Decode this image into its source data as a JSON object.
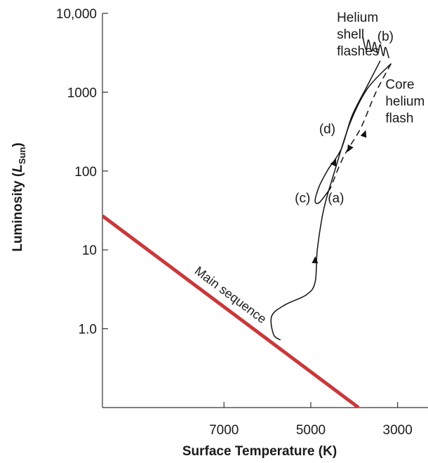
{
  "chart_data": {
    "type": "line",
    "title": "",
    "xlabel": "Surface Temperature (K)",
    "ylabel_main": "Luminosity (",
    "ylabel_symbol": "L",
    "ylabel_sub": "Sun",
    "ylabel_close": ")",
    "x_axis_reversed": true,
    "y_scale": "log",
    "xlim": [
      9800,
      2300
    ],
    "ylim": [
      0.1,
      10000
    ],
    "x_ticks": [
      {
        "value": 7000,
        "label": "7000"
      },
      {
        "value": 5000,
        "label": "5000"
      },
      {
        "value": 3000,
        "label": "3000"
      }
    ],
    "y_ticks": [
      {
        "value": 10000,
        "label": "10,000"
      },
      {
        "value": 1000,
        "label": "1000"
      },
      {
        "value": 100,
        "label": "100"
      },
      {
        "value": 10,
        "label": "10"
      },
      {
        "value": 1,
        "label": "1.0"
      }
    ],
    "main_sequence": {
      "label": "Main sequence",
      "color": "#c8393b",
      "points": [
        [
          9800,
          27
        ],
        [
          3900,
          0.1
        ]
      ]
    },
    "tracks": [
      {
        "id": "evolution-track-a-to-b",
        "style": "solid",
        "points": [
          [
            5700,
            0.72
          ],
          [
            5860,
            0.85
          ],
          [
            5900,
            1.45
          ],
          [
            5600,
            2.0
          ],
          [
            5100,
            2.7
          ],
          [
            4900,
            3.9
          ],
          [
            4850,
            10
          ],
          [
            4700,
            33
          ],
          [
            4450,
            100
          ],
          [
            4100,
            400
          ],
          [
            3700,
            1100
          ],
          [
            3150,
            2300
          ]
        ]
      },
      {
        "id": "evolution-track-b-to-c",
        "style": "dashed",
        "points": [
          [
            3150,
            2300
          ],
          [
            3500,
            1000
          ],
          [
            3850,
            350
          ],
          [
            4250,
            150
          ],
          [
            4550,
            60
          ]
        ]
      },
      {
        "id": "evolution-track-c-to-d",
        "style": "solid",
        "points": [
          [
            4550,
            60
          ],
          [
            4800,
            40
          ],
          [
            4900,
            42
          ],
          [
            4800,
            65
          ],
          [
            4600,
            105
          ],
          [
            4300,
            190
          ],
          [
            4050,
            500
          ],
          [
            3700,
            1200
          ],
          [
            3400,
            2500
          ]
        ]
      },
      {
        "id": "helium-shell-flashes-zigzag",
        "style": "solid",
        "points": [
          [
            3200,
            2700
          ],
          [
            3280,
            3700
          ],
          [
            3330,
            2900
          ],
          [
            3400,
            4000
          ],
          [
            3460,
            3100
          ],
          [
            3530,
            4300
          ],
          [
            3600,
            3300
          ],
          [
            3670,
            4600
          ],
          [
            3730,
            3500
          ],
          [
            3800,
            5000
          ]
        ]
      }
    ],
    "arrows": [
      {
        "id": "arrow-a-lower",
        "at": [
          4900,
          7.5
        ],
        "direction_to": [
          4890,
          10.5
        ]
      },
      {
        "id": "arrow-a-upper",
        "at": [
          3760,
          300
        ],
        "direction_to": [
          3700,
          370
        ]
      },
      {
        "id": "arrow-b-to-c",
        "at": [
          4120,
          190
        ],
        "direction_to": [
          4180,
          165
        ]
      },
      {
        "id": "arrow-c-to-d",
        "at": [
          4450,
          130
        ],
        "direction_to": [
          4370,
          160
        ]
      }
    ],
    "annotations": [
      {
        "id": "label-a",
        "text": "(a)",
        "at": [
          4420,
          40
        ]
      },
      {
        "id": "label-b",
        "text": "(b)",
        "at": [
          3280,
          4500
        ]
      },
      {
        "id": "label-c",
        "text": "(c)",
        "at": [
          5190,
          40
        ]
      },
      {
        "id": "label-d",
        "text": "(d)",
        "at": [
          4620,
          300
        ]
      },
      {
        "id": "label-core-helium-flash",
        "lines": [
          "Core",
          "helium",
          "flash"
        ],
        "at": [
          3280,
          1100
        ]
      },
      {
        "id": "label-helium-shell-flashes",
        "lines": [
          "Helium",
          "shell",
          "flashes"
        ],
        "at": [
          4400,
          7800
        ]
      }
    ],
    "grid": false,
    "legend": "none"
  }
}
